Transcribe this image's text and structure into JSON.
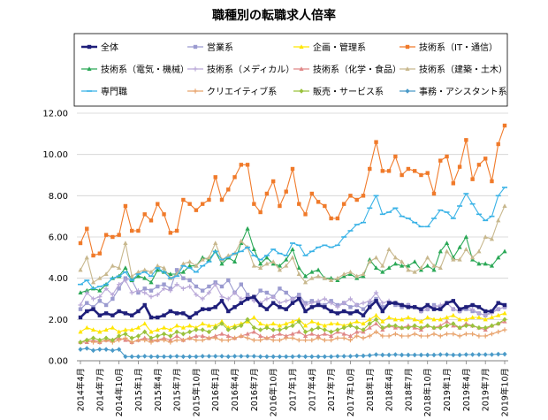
{
  "chart_data": {
    "type": "line",
    "title": "職種別の転職求人倍率",
    "xlabel": "",
    "ylabel": "",
    "ylim": [
      0,
      12
    ],
    "yticks": [
      "0.00",
      "2.00",
      "4.00",
      "6.00",
      "8.00",
      "10.00",
      "12.00"
    ],
    "x_tick_labels": [
      "2014年4月",
      "2014年7月",
      "2014年10月",
      "2015年1月",
      "2015年4月",
      "2015年7月",
      "2015年10月",
      "2016年1月",
      "2016年4月",
      "2016年7月",
      "2016年10月",
      "2017年1月",
      "2017年4月",
      "2017年7月",
      "2017年10月",
      "2018年1月",
      "2018年4月",
      "2018年7月",
      "2018年10月",
      "2019年1月",
      "2019年4月",
      "2019年7月",
      "2019年10月"
    ],
    "n_months": 67,
    "legend_position": "top",
    "series": [
      {
        "name": "全体",
        "color": "#1f1f7a",
        "marker": "square",
        "bold": true,
        "values": [
          2.1,
          2.4,
          2.5,
          2.2,
          2.3,
          2.2,
          2.4,
          2.3,
          2.2,
          2.4,
          2.7,
          2.1,
          2.1,
          2.2,
          2.4,
          2.3,
          2.3,
          2.1,
          2.3,
          2.5,
          2.5,
          2.6,
          2.9,
          2.4,
          2.6,
          2.8,
          3.0,
          3.1,
          2.7,
          2.5,
          2.8,
          2.6,
          2.5,
          2.8,
          3.0,
          2.4,
          2.6,
          2.7,
          2.6,
          2.4,
          2.3,
          2.4,
          2.3,
          2.4,
          2.2,
          2.6,
          2.9,
          2.4,
          2.8,
          2.8,
          2.7,
          2.6,
          2.6,
          2.5,
          2.7,
          2.5,
          2.5,
          2.8,
          2.9,
          2.5,
          2.6,
          2.7,
          2.6,
          2.4,
          2.4,
          2.8,
          2.7
        ]
      },
      {
        "name": "営業系",
        "color": "#9b9bd0",
        "marker": "square",
        "values": [
          2.5,
          2.8,
          2.6,
          2.9,
          2.7,
          3.0,
          3.5,
          4.0,
          3.9,
          3.3,
          3.5,
          3.4,
          3.6,
          3.7,
          3.5,
          4.4,
          4.0,
          3.9,
          3.6,
          3.4,
          3.6,
          3.8,
          3.6,
          3.9,
          3.3,
          3.7,
          3.2,
          3.0,
          3.4,
          3.3,
          3.1,
          3.5,
          3.3,
          3.0,
          3.2,
          2.8,
          2.9,
          2.8,
          2.7,
          2.9,
          2.7,
          2.8,
          2.6,
          2.7,
          2.5,
          2.8,
          3.0,
          2.6,
          2.8,
          2.7,
          2.6,
          2.7,
          2.6,
          2.4,
          2.5,
          2.7,
          2.6,
          2.8,
          2.5,
          2.4,
          2.5,
          2.4,
          2.3,
          2.2,
          2.4,
          2.5,
          2.6
        ]
      },
      {
        "name": "企画・管理系",
        "color": "#ffe600",
        "marker": "triangle",
        "values": [
          1.4,
          1.6,
          1.5,
          1.4,
          1.5,
          1.6,
          1.4,
          1.5,
          1.5,
          1.6,
          1.8,
          1.4,
          1.5,
          1.6,
          1.5,
          1.7,
          1.6,
          1.7,
          1.6,
          1.8,
          1.7,
          1.7,
          1.9,
          1.6,
          1.7,
          1.8,
          1.9,
          2.1,
          1.8,
          1.7,
          1.8,
          1.7,
          1.8,
          1.9,
          2.0,
          1.7,
          1.9,
          1.8,
          1.7,
          1.8,
          1.8,
          1.7,
          1.8,
          1.9,
          1.8,
          2.0,
          2.2,
          1.9,
          2.1,
          2.0,
          2.0,
          2.1,
          2.0,
          1.9,
          2.1,
          2.0,
          2.0,
          2.1,
          2.2,
          2.0,
          2.0,
          2.1,
          2.1,
          2.0,
          2.1,
          2.2,
          2.3
        ]
      },
      {
        "name": "技術系（IT・通信）",
        "color": "#f07a2a",
        "marker": "square",
        "values": [
          5.7,
          6.4,
          5.1,
          5.2,
          6.1,
          6.0,
          6.1,
          7.5,
          6.3,
          6.3,
          7.1,
          6.8,
          7.6,
          7.1,
          6.2,
          6.3,
          7.8,
          7.6,
          7.3,
          7.6,
          7.8,
          8.9,
          7.8,
          8.3,
          8.9,
          9.5,
          9.5,
          7.6,
          7.2,
          8.1,
          8.7,
          7.5,
          8.2,
          9.3,
          7.6,
          7.1,
          8.1,
          7.7,
          7.5,
          6.9,
          6.9,
          7.6,
          8.0,
          7.8,
          8.0,
          9.3,
          10.6,
          9.2,
          9.2,
          9.9,
          9.0,
          9.3,
          9.2,
          9.0,
          9.1,
          8.1,
          9.7,
          9.9,
          8.6,
          9.4,
          10.7,
          8.8,
          9.5,
          9.8,
          8.7,
          10.5,
          11.4
        ]
      },
      {
        "name": "技術系（電気・機械）",
        "color": "#2aa856",
        "marker": "triangle",
        "values": [
          3.3,
          3.4,
          3.5,
          3.4,
          3.7,
          4.0,
          4.1,
          4.5,
          3.9,
          4.1,
          4.0,
          3.8,
          4.4,
          4.3,
          4.2,
          4.2,
          4.3,
          4.6,
          4.6,
          5.0,
          4.9,
          5.3,
          4.7,
          5.0,
          4.8,
          5.7,
          6.4,
          5.4,
          4.7,
          5.0,
          4.7,
          4.6,
          4.9,
          5.4,
          4.5,
          4.1,
          4.3,
          4.4,
          4.0,
          4.0,
          3.9,
          4.1,
          4.2,
          4.0,
          4.1,
          4.9,
          4.5,
          4.3,
          4.5,
          4.7,
          4.6,
          4.6,
          4.8,
          4.4,
          4.6,
          4.4,
          5.3,
          5.7,
          5.0,
          5.5,
          6.0,
          4.9,
          4.7,
          4.7,
          4.6,
          5.0,
          5.3
        ]
      },
      {
        "name": "技術系（メディカル）",
        "color": "#b9a8d8",
        "marker": "plus",
        "values": [
          2.7,
          3.3,
          3.0,
          3.1,
          3.5,
          3.2,
          3.7,
          3.9,
          3.3,
          3.4,
          3.3,
          3.1,
          3.2,
          3.5,
          3.4,
          3.7,
          3.5,
          3.6,
          3.2,
          3.0,
          3.3,
          3.7,
          3.1,
          3.0,
          3.3,
          3.0,
          3.1,
          2.9,
          2.8,
          3.0,
          3.1,
          2.8,
          2.9,
          3.0,
          3.1,
          2.7,
          2.8,
          2.9,
          3.0,
          2.8,
          2.6,
          2.8,
          3.0,
          2.7,
          2.8,
          2.9,
          3.3,
          2.8,
          2.9,
          2.8,
          2.7,
          2.7,
          2.6,
          2.4,
          2.5,
          2.6,
          2.7,
          2.8,
          2.5,
          2.4,
          2.6,
          2.5,
          2.3,
          2.2,
          2.3,
          2.5,
          2.6
        ]
      },
      {
        "name": "技術系（化学・食品）",
        "color": "#e08888",
        "marker": "triangle",
        "values": [
          0.9,
          0.9,
          1.0,
          0.9,
          1.0,
          1.0,
          1.1,
          1.0,
          0.9,
          1.0,
          1.1,
          1.0,
          1.0,
          1.1,
          1.0,
          1.2,
          1.0,
          1.1,
          1.2,
          1.2,
          1.1,
          1.2,
          1.3,
          1.2,
          1.1,
          1.2,
          1.3,
          1.4,
          1.2,
          1.1,
          1.2,
          1.3,
          1.2,
          1.3,
          1.4,
          1.2,
          1.3,
          1.2,
          1.3,
          1.2,
          1.4,
          1.3,
          1.2,
          1.4,
          1.4,
          1.6,
          1.8,
          1.5,
          1.7,
          1.6,
          1.6,
          1.7,
          1.6,
          1.5,
          1.7,
          1.6,
          1.7,
          1.9,
          1.7,
          1.6,
          1.8,
          1.7,
          1.6,
          1.5,
          1.7,
          1.8,
          1.9
        ]
      },
      {
        "name": "技術系（建築・土木）",
        "color": "#c8b88e",
        "marker": "triangle",
        "values": [
          4.4,
          5.0,
          3.8,
          4.0,
          4.2,
          4.6,
          4.5,
          5.7,
          4.1,
          4.3,
          4.4,
          4.3,
          4.6,
          4.5,
          4.0,
          4.2,
          4.7,
          4.8,
          4.6,
          4.9,
          5.0,
          5.7,
          4.9,
          5.1,
          5.2,
          5.8,
          5.5,
          4.6,
          4.5,
          4.7,
          4.8,
          4.4,
          4.6,
          5.0,
          4.2,
          3.8,
          4.0,
          4.1,
          4.0,
          3.9,
          4.0,
          4.2,
          4.3,
          4.1,
          4.2,
          4.8,
          5.0,
          4.6,
          5.4,
          5.0,
          4.8,
          4.4,
          4.3,
          4.5,
          5.0,
          4.6,
          4.5,
          5.3,
          4.9,
          4.9,
          5.4,
          5.0,
          5.3,
          6.0,
          5.9,
          6.8,
          7.5
        ]
      },
      {
        "name": "専門職",
        "color": "#39b2e6",
        "marker": "dash",
        "values": [
          3.7,
          3.9,
          3.5,
          3.6,
          3.7,
          4.0,
          4.1,
          4.3,
          3.9,
          4.2,
          4.3,
          4.1,
          4.5,
          4.3,
          4.0,
          4.1,
          4.6,
          4.5,
          4.3,
          4.6,
          4.8,
          5.3,
          4.9,
          5.0,
          5.2,
          5.3,
          5.5,
          5.1,
          4.9,
          5.1,
          5.4,
          5.2,
          5.1,
          5.7,
          5.6,
          5.1,
          5.3,
          5.5,
          5.6,
          5.5,
          5.6,
          6.0,
          6.3,
          6.6,
          6.7,
          7.4,
          8.0,
          7.1,
          7.2,
          7.4,
          7.0,
          6.9,
          6.7,
          6.5,
          6.5,
          6.9,
          7.3,
          7.2,
          6.9,
          7.5,
          8.1,
          7.6,
          7.1,
          6.8,
          7.0,
          8.0,
          8.4
        ]
      },
      {
        "name": "クリエイティブ系",
        "color": "#e8a36c",
        "marker": "plus",
        "values": [
          0.9,
          1.0,
          0.9,
          0.9,
          1.0,
          0.9,
          1.0,
          1.1,
          0.9,
          1.0,
          1.0,
          0.9,
          1.0,
          1.0,
          0.9,
          1.0,
          1.0,
          1.1,
          1.0,
          1.0,
          1.1,
          1.1,
          1.0,
          1.0,
          1.1,
          1.2,
          1.1,
          1.0,
          1.0,
          1.1,
          1.0,
          1.0,
          1.1,
          1.1,
          1.0,
          1.0,
          1.0,
          1.1,
          1.0,
          1.0,
          1.1,
          1.1,
          1.0,
          1.2,
          1.1,
          1.2,
          1.4,
          1.2,
          1.2,
          1.3,
          1.2,
          1.2,
          1.3,
          1.2,
          1.2,
          1.3,
          1.2,
          1.3,
          1.3,
          1.2,
          1.3,
          1.3,
          1.2,
          1.2,
          1.3,
          1.4,
          1.5
        ]
      },
      {
        "name": "販売・サービス系",
        "color": "#9ac23c",
        "marker": "diamond",
        "values": [
          0.9,
          1.0,
          1.1,
          1.0,
          1.1,
          1.0,
          1.2,
          1.3,
          1.1,
          1.2,
          1.4,
          1.1,
          1.2,
          1.3,
          1.2,
          1.4,
          1.3,
          1.4,
          1.5,
          1.5,
          1.4,
          1.6,
          1.8,
          1.5,
          1.6,
          1.7,
          2.0,
          1.6,
          1.5,
          1.6,
          1.5,
          1.5,
          1.6,
          1.7,
          1.9,
          1.4,
          1.5,
          1.6,
          1.5,
          1.4,
          1.5,
          1.6,
          1.7,
          1.6,
          1.5,
          1.8,
          2.0,
          1.6,
          1.7,
          1.7,
          1.6,
          1.6,
          1.7,
          1.6,
          1.7,
          1.6,
          1.6,
          1.7,
          1.8,
          1.6,
          1.7,
          1.7,
          1.6,
          1.6,
          1.7,
          1.8,
          2.0
        ]
      },
      {
        "name": "事務・アシスタント系",
        "color": "#4a9ac8",
        "marker": "diamond",
        "values": [
          0.55,
          0.6,
          0.5,
          0.55,
          0.55,
          0.5,
          0.55,
          0.2,
          0.2,
          0.2,
          0.22,
          0.2,
          0.2,
          0.2,
          0.2,
          0.22,
          0.2,
          0.2,
          0.2,
          0.22,
          0.22,
          0.22,
          0.22,
          0.2,
          0.22,
          0.22,
          0.22,
          0.22,
          0.2,
          0.2,
          0.2,
          0.2,
          0.2,
          0.2,
          0.22,
          0.2,
          0.2,
          0.2,
          0.2,
          0.2,
          0.22,
          0.22,
          0.22,
          0.24,
          0.24,
          0.26,
          0.3,
          0.28,
          0.28,
          0.3,
          0.28,
          0.28,
          0.28,
          0.28,
          0.28,
          0.28,
          0.3,
          0.3,
          0.28,
          0.28,
          0.3,
          0.3,
          0.3,
          0.3,
          0.3,
          0.32,
          0.32
        ]
      }
    ]
  }
}
